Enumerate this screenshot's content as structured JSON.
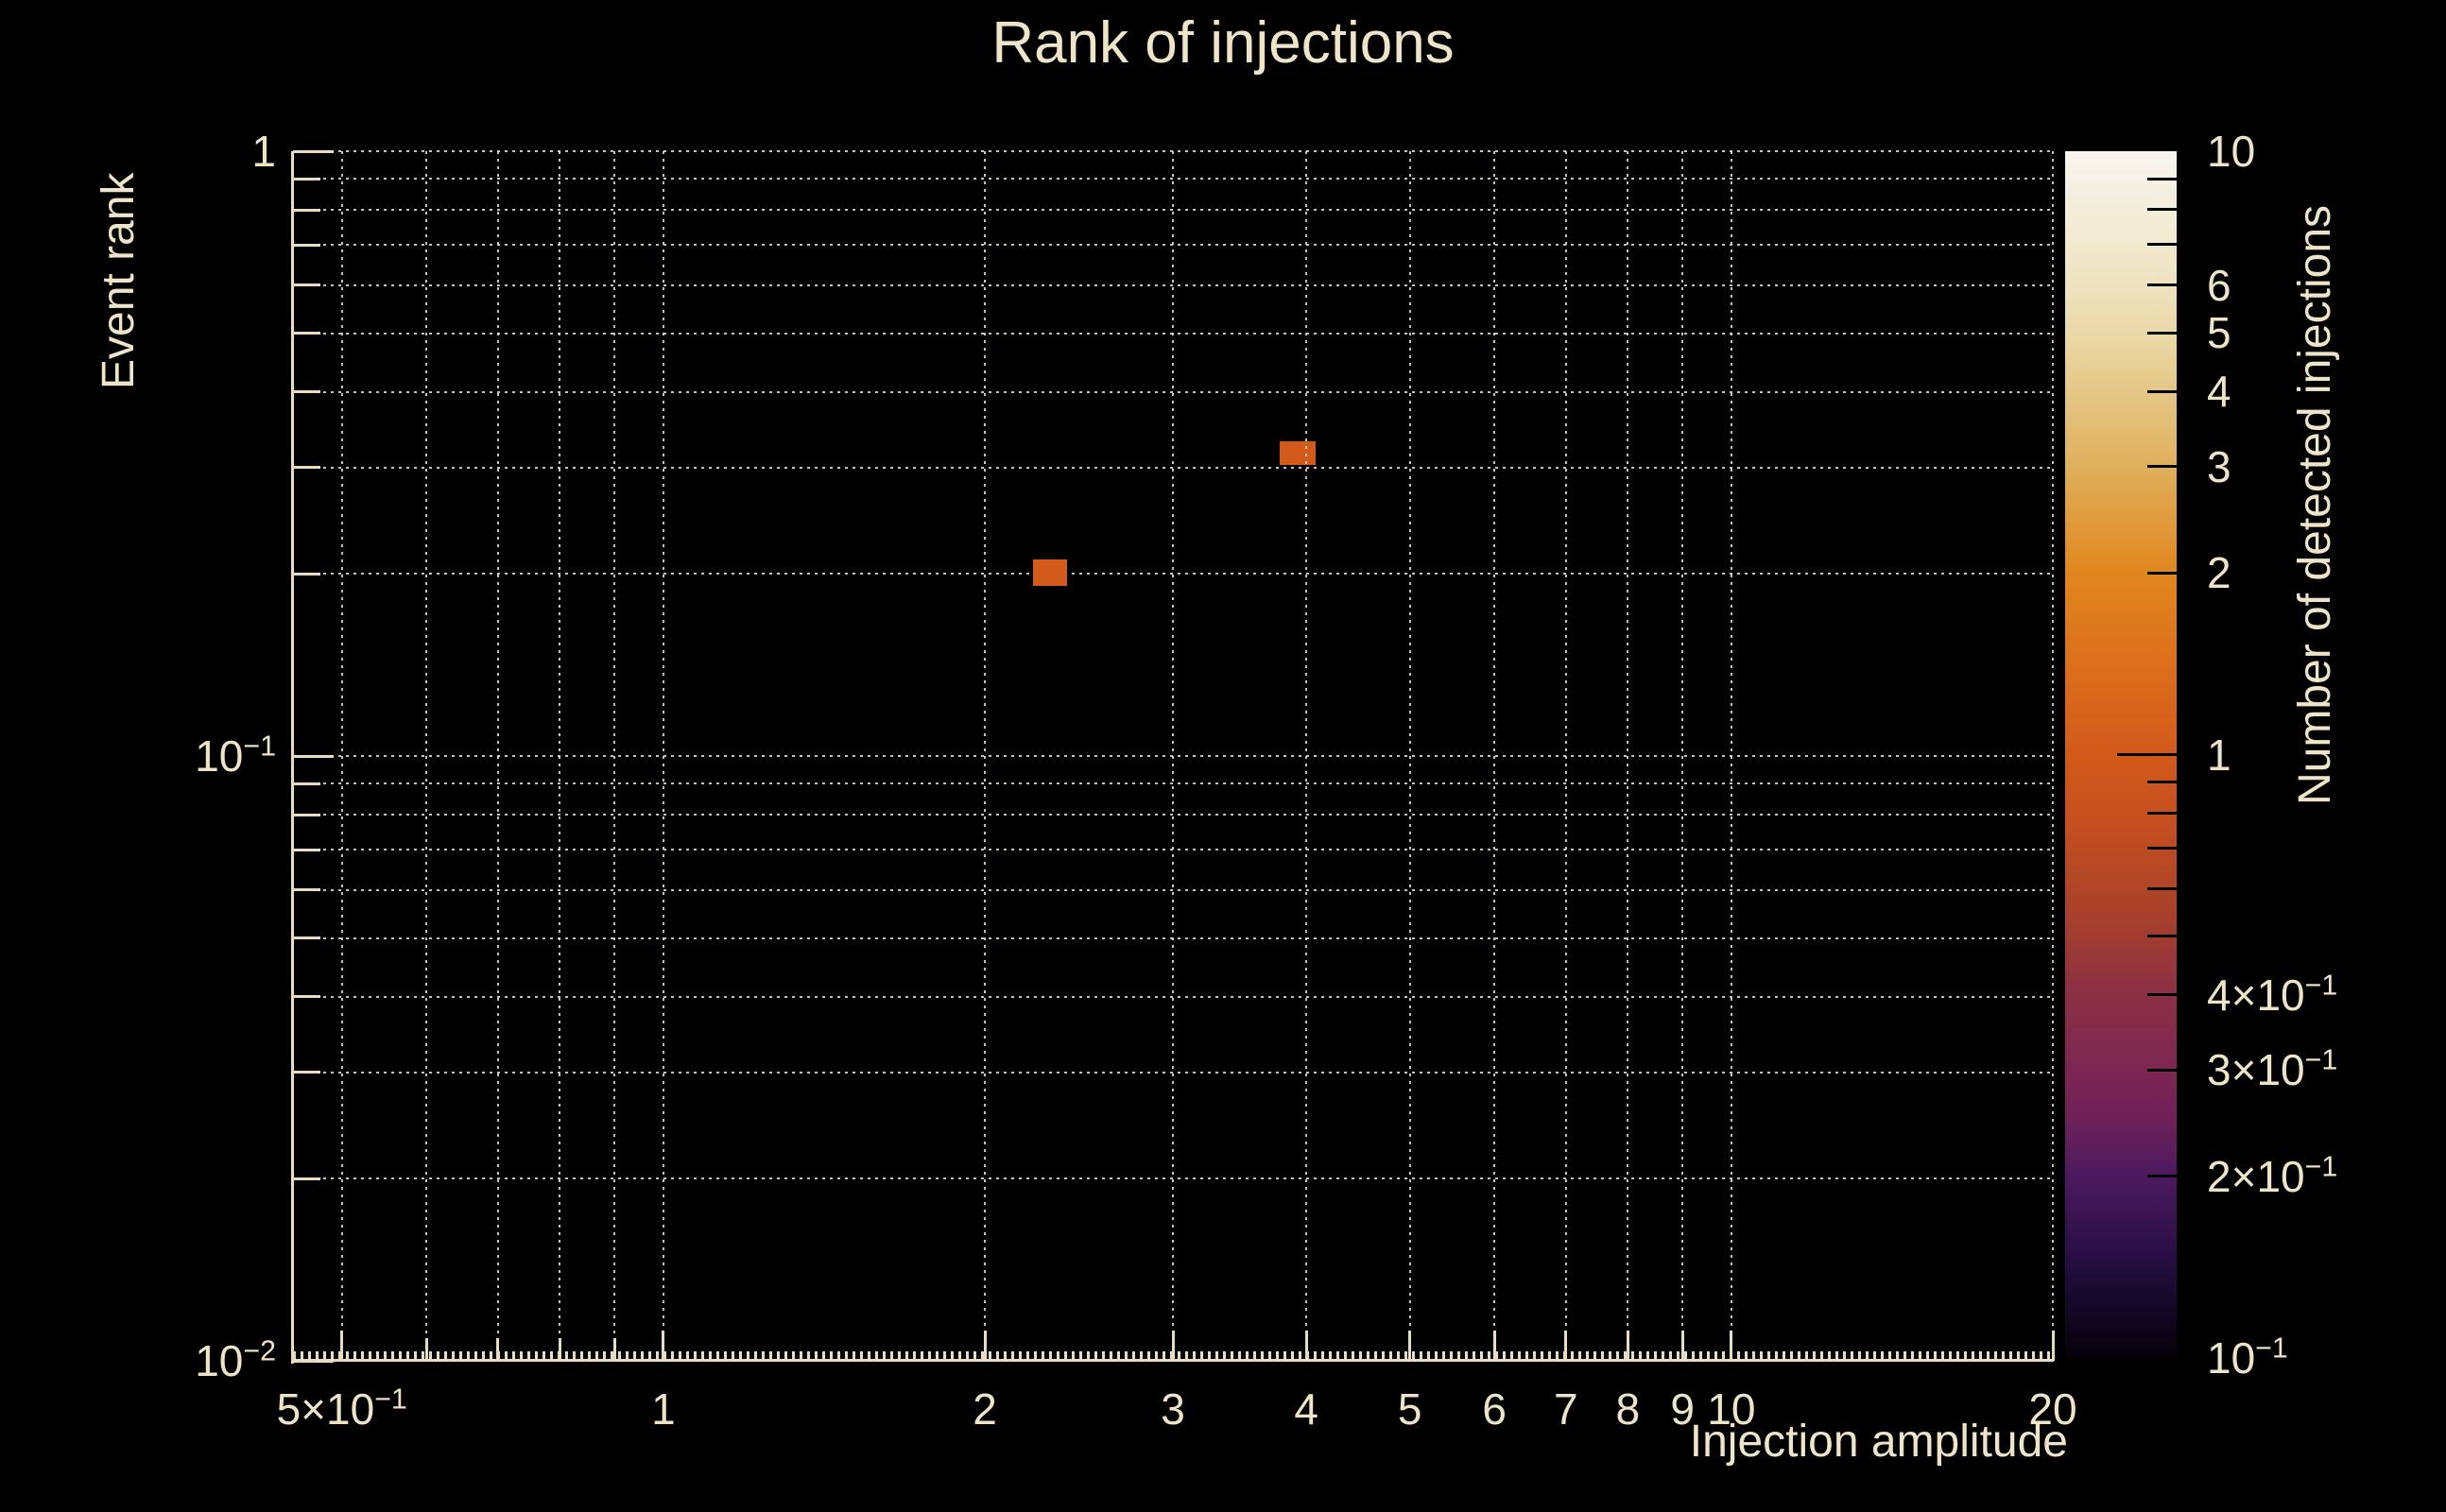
{
  "figure": {
    "background": "#000000",
    "text_color": "#eee5c9",
    "accent_cream": "#e6ddc2",
    "grid_color": "rgba(238,229,203,0.85)"
  },
  "chart_data": {
    "type": "heatmap",
    "title": "Rank of injections",
    "xlabel": "Injection amplitude",
    "ylabel": "Event rank",
    "zlabel": "Number of detected injections",
    "xscale": "log",
    "yscale": "log",
    "zscale": "log",
    "xlim": [
      0.45,
      20
    ],
    "ylim": [
      0.01,
      1
    ],
    "zlim": [
      0.1,
      10
    ],
    "grid": "dotted",
    "legend": "colorbar-right",
    "x_ticks": [
      {
        "value": 0.5,
        "label": "5×10^−1"
      },
      {
        "value": 1,
        "label": "1"
      },
      {
        "value": 2,
        "label": "2"
      },
      {
        "value": 3,
        "label": "3"
      },
      {
        "value": 4,
        "label": "4"
      },
      {
        "value": 5,
        "label": "5"
      },
      {
        "value": 6,
        "label": "6"
      },
      {
        "value": 7,
        "label": "7"
      },
      {
        "value": 8,
        "label": "8"
      },
      {
        "value": 9,
        "label": "9"
      },
      {
        "value": 10,
        "label": "10"
      },
      {
        "value": 20,
        "label": "20"
      }
    ],
    "x_grid": [
      0.5,
      0.6,
      0.7,
      0.8,
      0.9,
      1,
      2,
      3,
      4,
      5,
      6,
      7,
      8,
      9,
      10,
      20
    ],
    "x_minor_unlabeled": [
      0.6,
      0.7,
      0.8,
      0.9
    ],
    "y_ticks": [
      {
        "value": 1,
        "label": "1"
      },
      {
        "value": 0.1,
        "label": "10^−1"
      },
      {
        "value": 0.01,
        "label": "10^−2"
      }
    ],
    "y_grid": [
      1,
      0.9,
      0.8,
      0.7,
      0.6,
      0.5,
      0.4,
      0.3,
      0.2,
      0.1,
      0.09,
      0.08,
      0.07,
      0.06,
      0.05,
      0.04,
      0.03,
      0.02
    ],
    "y_major": [
      1,
      0.1,
      0.01
    ],
    "z_tick_labels": [
      {
        "value": 10,
        "label": "10"
      },
      {
        "value": 6,
        "label": "6"
      },
      {
        "value": 5,
        "label": "5"
      },
      {
        "value": 4,
        "label": "4"
      },
      {
        "value": 3,
        "label": "3"
      },
      {
        "value": 2,
        "label": "2"
      },
      {
        "value": 1,
        "label": "1"
      },
      {
        "value": 0.4,
        "label": "4×10^−1"
      },
      {
        "value": 0.3,
        "label": "3×10^−1"
      },
      {
        "value": 0.2,
        "label": "2×10^−1"
      },
      {
        "value": 0.1,
        "label": "10^−1"
      }
    ],
    "z_tick_marks": [
      9,
      8,
      7,
      6,
      5,
      4,
      3,
      2,
      1,
      0.9,
      0.8,
      0.7,
      0.6,
      0.5,
      0.4,
      0.3,
      0.2
    ],
    "z_major": [
      1
    ],
    "cells": [
      {
        "x": [
          2.22,
          2.39
        ],
        "y": [
          0.191,
          0.211
        ],
        "count": 1
      },
      {
        "x": [
          3.78,
          4.08
        ],
        "y": [
          0.303,
          0.331
        ],
        "count": 1
      }
    ],
    "colormap_stops": [
      [
        0.0,
        "#050109"
      ],
      [
        0.05,
        "#160a2b"
      ],
      [
        0.088,
        "#2a0f45"
      ],
      [
        0.151,
        "#4b1a5e"
      ],
      [
        0.199,
        "#6f2158"
      ],
      [
        0.239,
        "#7c2752"
      ],
      [
        0.301,
        "#8b3046"
      ],
      [
        0.349,
        "#a03c31"
      ],
      [
        0.389,
        "#b04527"
      ],
      [
        0.452,
        "#c8511f"
      ],
      [
        0.5,
        "#d25a1b"
      ],
      [
        0.588,
        "#dd731d"
      ],
      [
        0.651,
        "#e0871f"
      ],
      [
        0.739,
        "#dfb05c"
      ],
      [
        0.801,
        "#e4c787"
      ],
      [
        0.849,
        "#ead9a8"
      ],
      [
        0.889,
        "#eee3c0"
      ],
      [
        1.0,
        "#f7f5ef"
      ]
    ]
  }
}
